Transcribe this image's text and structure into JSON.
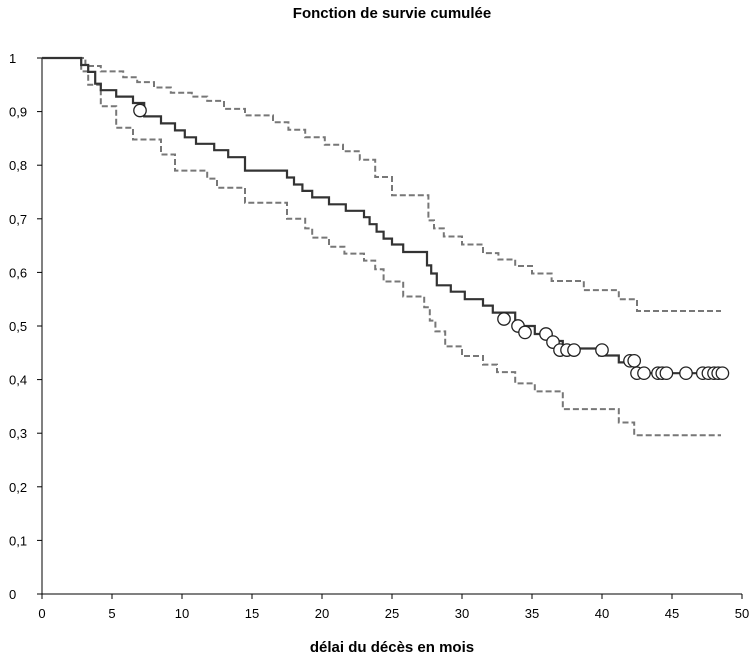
{
  "chart_data": {
    "type": "line",
    "title": "Fonction de survie cumulée",
    "xlabel": "délai du décès en mois",
    "ylabel": "",
    "xlim": [
      0,
      50
    ],
    "ylim": [
      0,
      1
    ],
    "xticks": [
      "0",
      "5",
      "10",
      "15",
      "20",
      "25",
      "30",
      "35",
      "40",
      "45",
      "50"
    ],
    "yticks": [
      "0",
      "0,1",
      "0,2",
      "0,3",
      "0,4",
      "0,5",
      "0,6",
      "0,7",
      "0,8",
      "0,9",
      "1"
    ],
    "grid": false,
    "legend": "none",
    "series": [
      {
        "style": "step-solid",
        "color": "#333333",
        "x": [
          0,
          2.8,
          3.3,
          3.8,
          4.2,
          5.3,
          6.5,
          7.3,
          8.5,
          9.5,
          10.2,
          11,
          12.3,
          13.3,
          14.5,
          17.5,
          18,
          18.6,
          19.3,
          20.5,
          21.7,
          23,
          23.4,
          23.9,
          24.4,
          25,
          25.8,
          27.5,
          27.8,
          28.2,
          29.2,
          30.2,
          31.5,
          32.2,
          33.8,
          35.2,
          36.4,
          37.2,
          39.8,
          41.2,
          42.3,
          48.5
        ],
        "y": [
          1,
          0.987,
          0.974,
          0.952,
          0.94,
          0.928,
          0.916,
          0.891,
          0.878,
          0.865,
          0.852,
          0.84,
          0.828,
          0.815,
          0.79,
          0.777,
          0.764,
          0.752,
          0.74,
          0.727,
          0.715,
          0.703,
          0.69,
          0.676,
          0.663,
          0.652,
          0.638,
          0.613,
          0.598,
          0.576,
          0.564,
          0.55,
          0.538,
          0.525,
          0.5,
          0.485,
          0.472,
          0.458,
          0.445,
          0.432,
          0.412,
          0.412
        ]
      },
      {
        "style": "step-dashed",
        "color": "#777777",
        "x": [
          0,
          3.1,
          4.2,
          5.8,
          6.8,
          8,
          9.2,
          10.7,
          11.8,
          13,
          14.5,
          16.5,
          17.6,
          18.8,
          20.2,
          21.5,
          22.7,
          23.8,
          25,
          27.6,
          28,
          28.7,
          30,
          31.5,
          32.6,
          33.8,
          35,
          36.4,
          38.7,
          41.2,
          42.5,
          48.5
        ],
        "y": [
          1,
          0.985,
          0.975,
          0.964,
          0.955,
          0.945,
          0.935,
          0.928,
          0.92,
          0.905,
          0.893,
          0.88,
          0.866,
          0.852,
          0.838,
          0.826,
          0.81,
          0.778,
          0.744,
          0.697,
          0.682,
          0.667,
          0.652,
          0.636,
          0.624,
          0.612,
          0.598,
          0.584,
          0.567,
          0.55,
          0.528,
          0.528
        ]
      },
      {
        "style": "step-dashed",
        "color": "#777777",
        "x": [
          0,
          2.8,
          3.3,
          4.2,
          5.3,
          6.5,
          8.5,
          9.5,
          11.8,
          12.5,
          14.5,
          17.5,
          18.8,
          19.3,
          20.5,
          21.6,
          23,
          23.8,
          24.4,
          25.8,
          27.3,
          27.7,
          28.1,
          28.8,
          30,
          31.5,
          32.5,
          33.8,
          35.2,
          37.2,
          40,
          41.2,
          42.3,
          48.5
        ],
        "y": [
          1,
          0.975,
          0.95,
          0.91,
          0.87,
          0.848,
          0.82,
          0.79,
          0.775,
          0.758,
          0.73,
          0.7,
          0.682,
          0.665,
          0.648,
          0.635,
          0.622,
          0.606,
          0.583,
          0.555,
          0.535,
          0.51,
          0.49,
          0.462,
          0.444,
          0.428,
          0.414,
          0.393,
          0.378,
          0.345,
          0.345,
          0.32,
          0.296,
          0.296
        ]
      }
    ],
    "censored": {
      "x": [
        7,
        33,
        34,
        34.5,
        36,
        36.5,
        37,
        37.5,
        38,
        40,
        42,
        42.3,
        42.5,
        43,
        44,
        44.3,
        44.6,
        46,
        47.2,
        47.6,
        48,
        48.3,
        48.6
      ],
      "y": [
        0.902,
        0.513,
        0.5,
        0.488,
        0.485,
        0.47,
        0.455,
        0.455,
        0.455,
        0.455,
        0.435,
        0.435,
        0.412,
        0.412,
        0.412,
        0.412,
        0.412,
        0.412,
        0.412,
        0.412,
        0.412,
        0.412,
        0.412
      ]
    }
  }
}
